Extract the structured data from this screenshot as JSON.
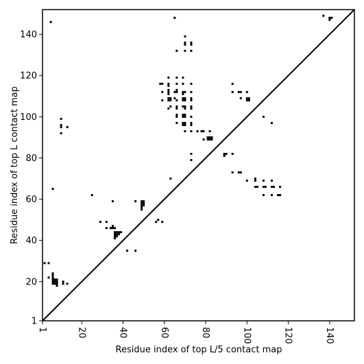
{
  "chart_data": {
    "type": "scatter",
    "title": "",
    "xlabel": "Residue index of top L/5 contact map",
    "ylabel": "Residue index of top L contact map",
    "xlim": [
      1,
      152
    ],
    "ylim": [
      1,
      152
    ],
    "x_ticks": [
      1,
      20,
      40,
      60,
      80,
      100,
      120,
      140
    ],
    "y_ticks": [
      1,
      20,
      40,
      60,
      80,
      100,
      120,
      140
    ],
    "grid": false,
    "legend": "none",
    "colors": {
      "points": "#000000",
      "diagonal": "#000000",
      "frame": "#000000"
    },
    "diagonal": [
      [
        1,
        1
      ],
      [
        152,
        152
      ]
    ],
    "points": [
      [
        5,
        146
      ],
      [
        10,
        99
      ],
      [
        10,
        96
      ],
      [
        10,
        95
      ],
      [
        10,
        92
      ],
      [
        13,
        95
      ],
      [
        6,
        65
      ],
      [
        2,
        29
      ],
      [
        4,
        29
      ],
      [
        4,
        22
      ],
      [
        6,
        24
      ],
      [
        6,
        23
      ],
      [
        6,
        22
      ],
      [
        6,
        21
      ],
      [
        6,
        20
      ],
      [
        6,
        19
      ],
      [
        7,
        21
      ],
      [
        7,
        20
      ],
      [
        7,
        19
      ],
      [
        8,
        21
      ],
      [
        8,
        20
      ],
      [
        8,
        19
      ],
      [
        8,
        18
      ],
      [
        11,
        20
      ],
      [
        11,
        19
      ],
      [
        13,
        19
      ],
      [
        25,
        62
      ],
      [
        29,
        49
      ],
      [
        32,
        49
      ],
      [
        32,
        46
      ],
      [
        34,
        46
      ],
      [
        35,
        59
      ],
      [
        35,
        47
      ],
      [
        35,
        46
      ],
      [
        36,
        46
      ],
      [
        36,
        44
      ],
      [
        36,
        43
      ],
      [
        36,
        42
      ],
      [
        36,
        41
      ],
      [
        37,
        44
      ],
      [
        37,
        43
      ],
      [
        37,
        42
      ],
      [
        38,
        44
      ],
      [
        38,
        43
      ],
      [
        39,
        44
      ],
      [
        42,
        35
      ],
      [
        46,
        35
      ],
      [
        46,
        59
      ],
      [
        49,
        59
      ],
      [
        49,
        58
      ],
      [
        49,
        57
      ],
      [
        49,
        56
      ],
      [
        49,
        55
      ],
      [
        50,
        59
      ],
      [
        50,
        58
      ],
      [
        50,
        57
      ],
      [
        56,
        49
      ],
      [
        57,
        50
      ],
      [
        59,
        49
      ],
      [
        63,
        70
      ],
      [
        65,
        148
      ],
      [
        70,
        139
      ],
      [
        70,
        136
      ],
      [
        70,
        135
      ],
      [
        73,
        136
      ],
      [
        73,
        135
      ],
      [
        66,
        132
      ],
      [
        70,
        132
      ],
      [
        73,
        132
      ],
      [
        58,
        116
      ],
      [
        59,
        116
      ],
      [
        59,
        112
      ],
      [
        59,
        108
      ],
      [
        62,
        119
      ],
      [
        62,
        116
      ],
      [
        62,
        115
      ],
      [
        62,
        113
      ],
      [
        62,
        112
      ],
      [
        62,
        111
      ],
      [
        62,
        109
      ],
      [
        62,
        108
      ],
      [
        62,
        104
      ],
      [
        63,
        109
      ],
      [
        63,
        108
      ],
      [
        63,
        105
      ],
      [
        65,
        112
      ],
      [
        65,
        109
      ],
      [
        66,
        119
      ],
      [
        66,
        116
      ],
      [
        66,
        113
      ],
      [
        66,
        112
      ],
      [
        66,
        108
      ],
      [
        66,
        105
      ],
      [
        66,
        104
      ],
      [
        66,
        101
      ],
      [
        66,
        100
      ],
      [
        66,
        97
      ],
      [
        69,
        119
      ],
      [
        69,
        116
      ],
      [
        69,
        112
      ],
      [
        69,
        111
      ],
      [
        69,
        109
      ],
      [
        69,
        108
      ],
      [
        69,
        105
      ],
      [
        69,
        101
      ],
      [
        69,
        100
      ],
      [
        69,
        97
      ],
      [
        69,
        96
      ],
      [
        70,
        112
      ],
      [
        70,
        109
      ],
      [
        70,
        108
      ],
      [
        70,
        105
      ],
      [
        70,
        104
      ],
      [
        70,
        101
      ],
      [
        70,
        100
      ],
      [
        70,
        97
      ],
      [
        70,
        96
      ],
      [
        70,
        93
      ],
      [
        73,
        116
      ],
      [
        73,
        112
      ],
      [
        73,
        109
      ],
      [
        73,
        108
      ],
      [
        73,
        105
      ],
      [
        73,
        104
      ],
      [
        73,
        100
      ],
      [
        73,
        97
      ],
      [
        73,
        96
      ],
      [
        73,
        93
      ],
      [
        73,
        82
      ],
      [
        73,
        79
      ],
      [
        76,
        93
      ],
      [
        78,
        93
      ],
      [
        79,
        93
      ],
      [
        79,
        89
      ],
      [
        81,
        90
      ],
      [
        81,
        89
      ],
      [
        82,
        93
      ],
      [
        82,
        90
      ],
      [
        82,
        89
      ],
      [
        83,
        90
      ],
      [
        83,
        89
      ],
      [
        89,
        82
      ],
      [
        89,
        81
      ],
      [
        90,
        82
      ],
      [
        93,
        116
      ],
      [
        93,
        112
      ],
      [
        93,
        82
      ],
      [
        93,
        73
      ],
      [
        96,
        112
      ],
      [
        97,
        112
      ],
      [
        97,
        109
      ],
      [
        96,
        73
      ],
      [
        97,
        73
      ],
      [
        100,
        112
      ],
      [
        100,
        109
      ],
      [
        100,
        108
      ],
      [
        101,
        109
      ],
      [
        101,
        108
      ],
      [
        100,
        69
      ],
      [
        104,
        70
      ],
      [
        104,
        69
      ],
      [
        104,
        66
      ],
      [
        105,
        66
      ],
      [
        108,
        100
      ],
      [
        108,
        69
      ],
      [
        108,
        66
      ],
      [
        108,
        62
      ],
      [
        109,
        66
      ],
      [
        112,
        97
      ],
      [
        112,
        69
      ],
      [
        112,
        66
      ],
      [
        112,
        62
      ],
      [
        113,
        66
      ],
      [
        115,
        62
      ],
      [
        116,
        66
      ],
      [
        116,
        62
      ],
      [
        137,
        149
      ],
      [
        140,
        148
      ],
      [
        140,
        147
      ],
      [
        141,
        148
      ]
    ]
  }
}
